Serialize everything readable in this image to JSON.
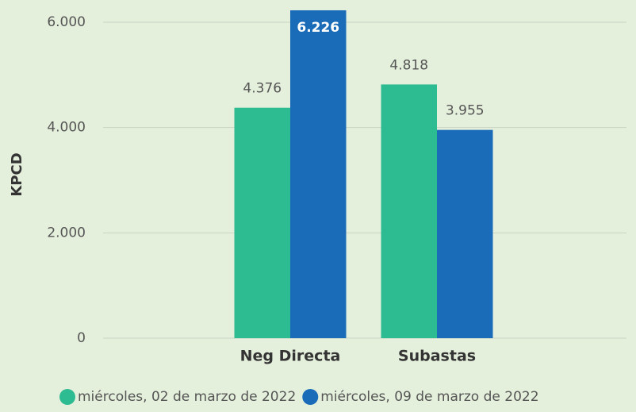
{
  "chart_data": {
    "type": "bar",
    "y_label": "KPCD",
    "categories": [
      "Neg Directa",
      "Subastas"
    ],
    "series": [
      {
        "name": "miércoles, 02 de marzo de 2022",
        "color": "#2dbb92",
        "values": [
          4376,
          4818
        ],
        "value_labels": [
          "4.376",
          "4.818"
        ]
      },
      {
        "name": "miércoles, 09 de marzo de 2022",
        "color": "#1a6bb8",
        "values": [
          6226,
          3955
        ],
        "value_labels": [
          "6.226",
          "3.955"
        ]
      }
    ],
    "ylim": [
      0,
      6250
    ],
    "yticks": [
      0,
      {
        "value": 2000,
        "label": "2.000"
      },
      {
        "value": 4000,
        "label": "4.000"
      },
      {
        "value": 6000,
        "label": "6.000"
      }
    ],
    "grid": true,
    "legend": "bottom"
  }
}
